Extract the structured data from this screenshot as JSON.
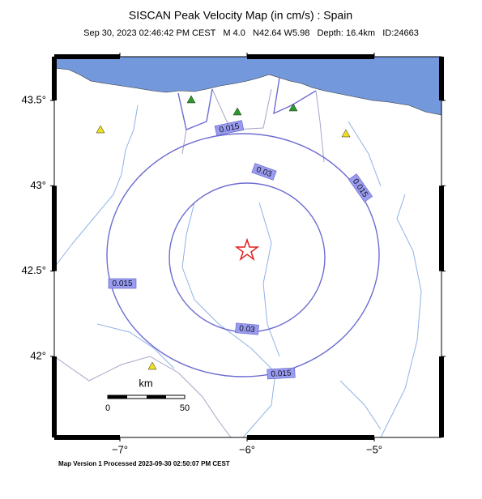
{
  "header": {
    "title": "SISCAN Peak Velocity Map (in cm/s) : Spain",
    "subtitle": "Sep 30, 2023 02:46:42 PM CEST   M 4.0   N42.64 W5.98   Depth: 16.4km   ID:24663"
  },
  "axes": {
    "lat_ticks": [
      {
        "value": 43.5,
        "label": "43.5°"
      },
      {
        "value": 43,
        "label": "43°"
      },
      {
        "value": 42.5,
        "label": "42.5°"
      },
      {
        "value": 42,
        "label": "42°"
      }
    ],
    "lon_ticks": [
      {
        "value": -7,
        "label": "−7°"
      },
      {
        "value": -6,
        "label": "−6°"
      },
      {
        "value": -5,
        "label": "−5°"
      }
    ]
  },
  "contour_labels": [
    "0.015",
    "0.015",
    "0.015",
    "0.015",
    "0.03",
    "0.03"
  ],
  "scale_bar": {
    "unit": "km",
    "start": "0",
    "end": "50"
  },
  "footer": "Map Version 1 Processed 2023-09-30 02:50:07 PM CEST"
}
